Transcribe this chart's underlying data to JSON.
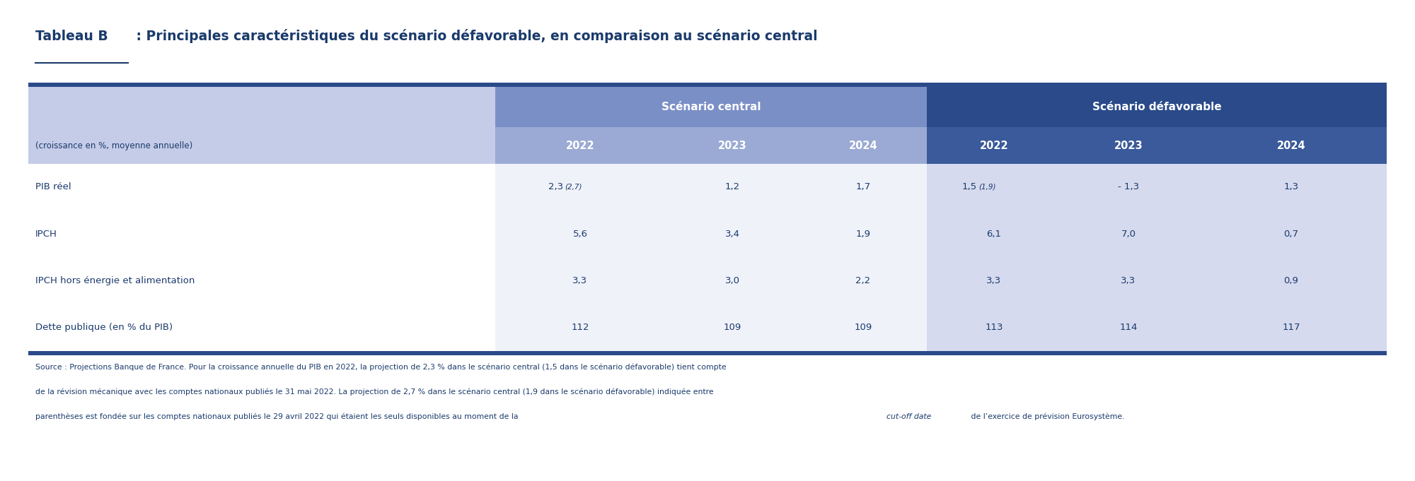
{
  "title_tableau": "Tableau B",
  "title_main": " : Principales caractéristiques du scénario défavorable, en comparaison au scénario central",
  "header_central": "Scénario central",
  "header_defavorable": "Scénario défavorable",
  "subheader": "(croissance en %, moyenne annuelle)",
  "years": [
    "2022",
    "2023",
    "2024"
  ],
  "rows": [
    {
      "label": "PIB réel",
      "central": [
        "2,3 (2,7)",
        "1,2",
        "1,7"
      ],
      "defavorable": [
        "1,5 (1,9)",
        "- 1,3",
        "1,3"
      ]
    },
    {
      "label": "IPCH",
      "central": [
        "5,6",
        "3,4",
        "1,9"
      ],
      "defavorable": [
        "6,1",
        "7,0",
        "0,7"
      ]
    },
    {
      "label": "IPCH hors énergie et alimentation",
      "central": [
        "3,3",
        "3,0",
        "2,2"
      ],
      "defavorable": [
        "3,3",
        "3,3",
        "0,9"
      ]
    },
    {
      "label": "Dette publique (en % du PIB)",
      "central": [
        "112",
        "109",
        "109"
      ],
      "defavorable": [
        "113",
        "114",
        "117"
      ]
    }
  ],
  "source_text": "Source : Projections Banque de France. Pour la croissance annuelle du PIB en 2022, la projection de 2,3 % dans le scénario central (1,5 dans le scénario défavorable) tient compte de la révision mécanique avec les comptes nationaux publiés le 31 mai 2022. La projection de 2,7 % dans le scénario central (1,9 dans le scénario défavorable) indiquée entre parenthèses est fondée sur les comptes nationaux publiés le 29 avril 2022 qui étaient les seuls disponibles au moment de la cut-off date de l’exercice de prévision Eurosystème.",
  "source_italic_part": "cut-off date",
  "color_dark_blue": "#1a3a6b",
  "color_medium_blue": "#3a5a9b",
  "color_header_bg_central": "#8090c0",
  "color_header_bg_defav": "#2a4a8a",
  "color_row_light": "#d8ddf0",
  "color_row_medium": "#c0c8e8",
  "color_row_defav_light": "#b0bce0",
  "color_subheader_bg": "#a0acd8",
  "color_white": "#ffffff",
  "color_text_dark": "#1a3a6b",
  "color_text_white": "#ffffff",
  "bg_color": "#ffffff"
}
